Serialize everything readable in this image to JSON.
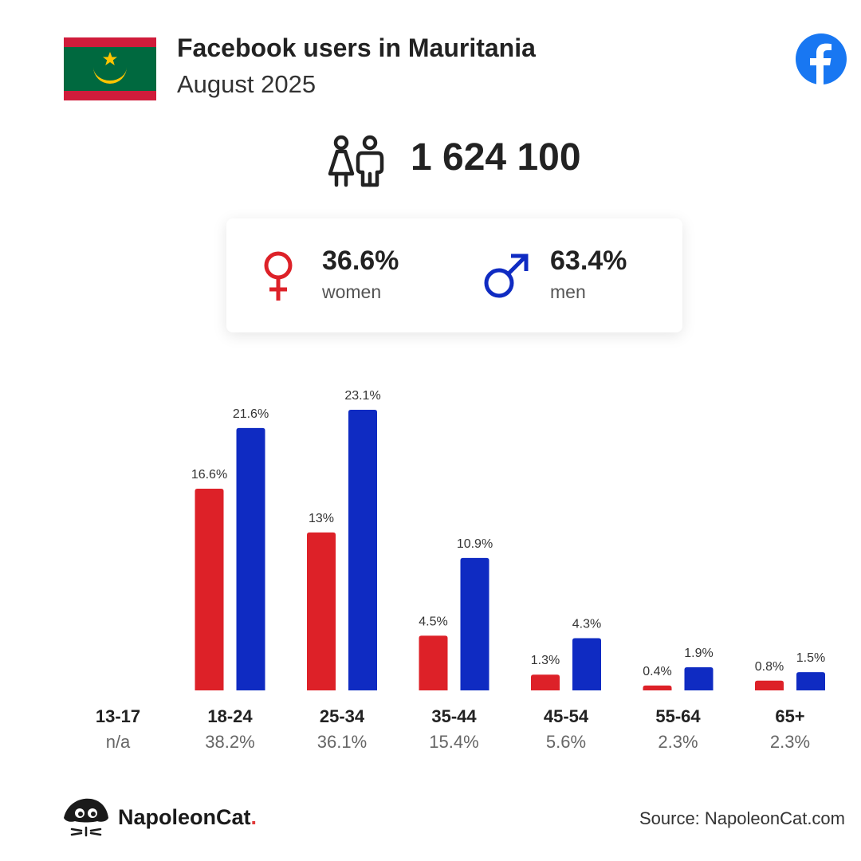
{
  "header": {
    "title": "Facebook users in Mauritania",
    "subtitle": "August 2025",
    "icons": {
      "flag": "mauritania-flag-icon",
      "platform": "facebook-logo-icon"
    }
  },
  "summary": {
    "total_users": "1 624 100",
    "women": {
      "percent": "36.6%",
      "label": "women"
    },
    "men": {
      "percent": "63.4%",
      "label": "men"
    }
  },
  "colors": {
    "women": "#dd2128",
    "men": "#0f2bc2",
    "text": "#222222",
    "flag_green": "#00693f",
    "flag_red": "#d01c3b",
    "flag_gold": "#ffc400",
    "facebook_blue": "#1877f2"
  },
  "chart_data": {
    "type": "bar",
    "categories": [
      "13-17",
      "18-24",
      "25-34",
      "35-44",
      "45-54",
      "55-64",
      "65+"
    ],
    "group_totals": [
      "n/a",
      "38.2%",
      "36.1%",
      "15.4%",
      "5.6%",
      "2.3%",
      "2.3%"
    ],
    "series": [
      {
        "name": "women",
        "values": [
          null,
          16.6,
          13,
          4.5,
          1.3,
          0.4,
          0.8
        ],
        "labels": [
          "",
          "16.6%",
          "13%",
          "4.5%",
          "1.3%",
          "0.4%",
          "0.8%"
        ]
      },
      {
        "name": "men",
        "values": [
          null,
          21.6,
          23.1,
          10.9,
          4.3,
          1.9,
          1.5
        ],
        "labels": [
          "",
          "21.6%",
          "23.1%",
          "10.9%",
          "4.3%",
          "1.9%",
          "1.5%"
        ]
      }
    ],
    "ylim": [
      0,
      23.1
    ],
    "grid": false,
    "legend": "none"
  },
  "footer": {
    "brand_name": "NapoleonCat",
    "brand_dot": ".",
    "source": "Source: NapoleonCat.com"
  }
}
